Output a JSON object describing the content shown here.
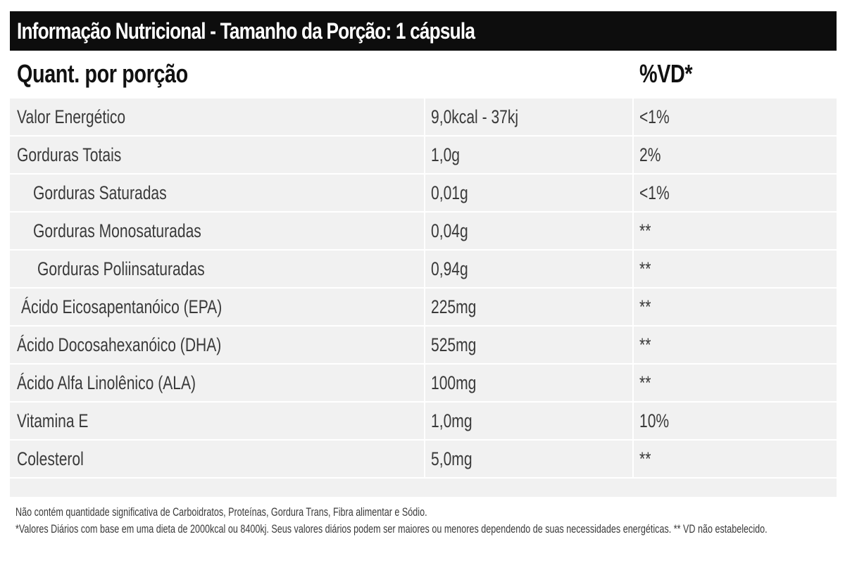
{
  "title": "Informação Nutricional - Tamanho da Porção: 1 cápsula",
  "header": {
    "col1": "Quant. por porção",
    "col2": "",
    "col3": "%VD*"
  },
  "rows": [
    {
      "name": "Valor Energético",
      "amount": "9,0kcal - 37kj",
      "vd": "<1%"
    },
    {
      "name": "Gorduras Totais",
      "amount": "1,0g",
      "vd": "2%"
    },
    {
      "name": "Gorduras Saturadas",
      "amount": "0,01g",
      "vd": "<1%"
    },
    {
      "name": "Gorduras Monosaturadas",
      "amount": "0,04g",
      "vd": "**"
    },
    {
      "name": "Gorduras Poliinsaturadas",
      "amount": "0,94g",
      "vd": "**"
    },
    {
      "name": "Ácido Eicosapentanóico (EPA)",
      "amount": "225mg",
      "vd": "**"
    },
    {
      "name": "Ácido Docosahexanóico (DHA)",
      "amount": "525mg",
      "vd": "**"
    },
    {
      "name": "Ácido Alfa Linolênico (ALA)",
      "amount": "100mg",
      "vd": "**"
    },
    {
      "name": "Vitamina E",
      "amount": "1,0mg",
      "vd": "10%"
    },
    {
      "name": "Colesterol",
      "amount": "5,0mg",
      "vd": "**"
    }
  ],
  "footer": {
    "note1": "Não contém quantidade significativa de Carboidratos, Proteínas, Gordura Trans, Fibra alimentar e Sódio.",
    "note2": "*Valores Diários com base em uma dieta de 2000kcal ou 8400kj. Seus valores diários podem ser maiores ou menores dependendo de suas necessidades energéticas.   ** VD não estabelecido."
  }
}
